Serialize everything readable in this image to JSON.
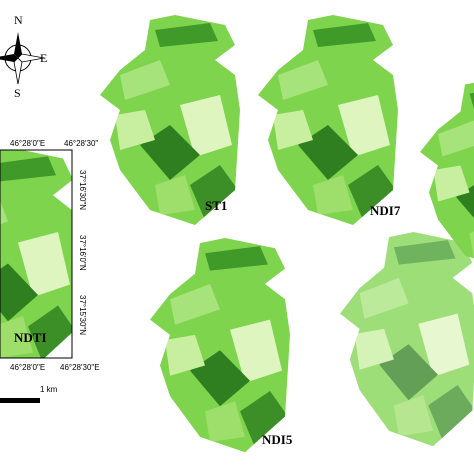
{
  "compass": {
    "north": "N",
    "east": "E",
    "south": "S"
  },
  "inset": {
    "label": "NDTI",
    "top_ticks": [
      "46°28'0\"E",
      "46°28'30\""
    ],
    "right_ticks": [
      "37°16'30\"N",
      "37°16'0\"N",
      "37°15'30\"N"
    ],
    "bottom_ticks": [
      "46°28'0\"E",
      "46°28'30\"E"
    ]
  },
  "scale_bar": {
    "label": "1 km"
  },
  "panels": [
    {
      "label": "ST1"
    },
    {
      "label": "NDI7"
    },
    {
      "label": "NDI5"
    }
  ]
}
